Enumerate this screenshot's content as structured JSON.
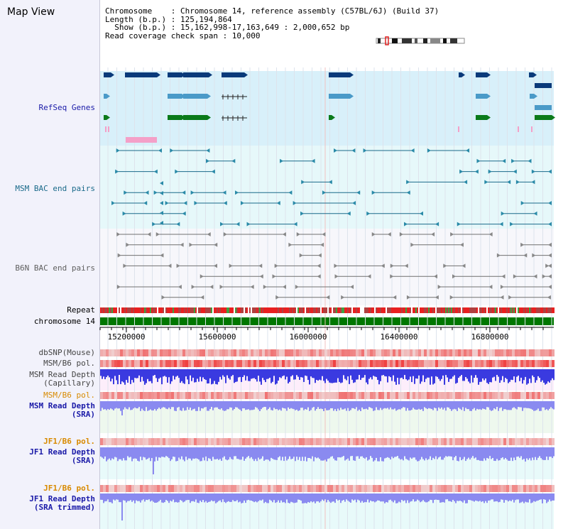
{
  "title": "Map View",
  "info": {
    "chromosome_line": "Chromosome    : Chromosome 14, reference assembly (C57BL/6J) (Build 37)",
    "length_line": "Length (b.p.) : 125,194,864",
    "show_line": "  Show (b.p.) : 15,162,998-17,163,649 : 2,000,652 bp",
    "span_line": "Read coverage check span : 10,000"
  },
  "tracks": {
    "refseq": "RefSeq Genes",
    "msm_bac": "MSM BAC end pairs",
    "b6n_bac": "B6N BAC end pairs",
    "repeat": "Repeat",
    "chromosome": "chromosome 14",
    "dbsnp": "dbSNP(Mouse)",
    "msm_b6_pol_1": "MSM/B6 pol.",
    "msm_depth_cap_1": "MSM Read Depth",
    "msm_depth_cap_2": "(Capillary)",
    "msm_b6_pol_2": "MSM/B6 pol.",
    "msm_depth_sra_1": "MSM Read Depth",
    "msm_depth_sra_2": "(SRA)",
    "jf1_b6_pol_1": "JF1/B6 pol.",
    "jf1_depth_sra_1": "JF1 Read Depth",
    "jf1_depth_sra_2": "(SRA)",
    "jf1_b6_pol_2": "JF1/B6 pol.",
    "jf1_depth_trim_1": "JF1 Read Depth",
    "jf1_depth_trim_2": "(SRA trimmed)"
  },
  "ruler": {
    "ticks": [
      "15200000",
      "15600000",
      "16000000",
      "16400000",
      "16800000"
    ]
  },
  "colors": {
    "refseq_bg": "#d8f0fa",
    "bac_bg": "#e6f8fa",
    "gene_dark": "#0a3a7a",
    "gene_mid": "#4a9ac8",
    "gene_green": "#0a7a1a",
    "gene_pink": "#f4a0c8",
    "chromosome_bar": "#007700",
    "depth_blue": "#3a3ae0",
    "depth_light_blue": "#8a8af0",
    "pol_red": "#e82020"
  }
}
